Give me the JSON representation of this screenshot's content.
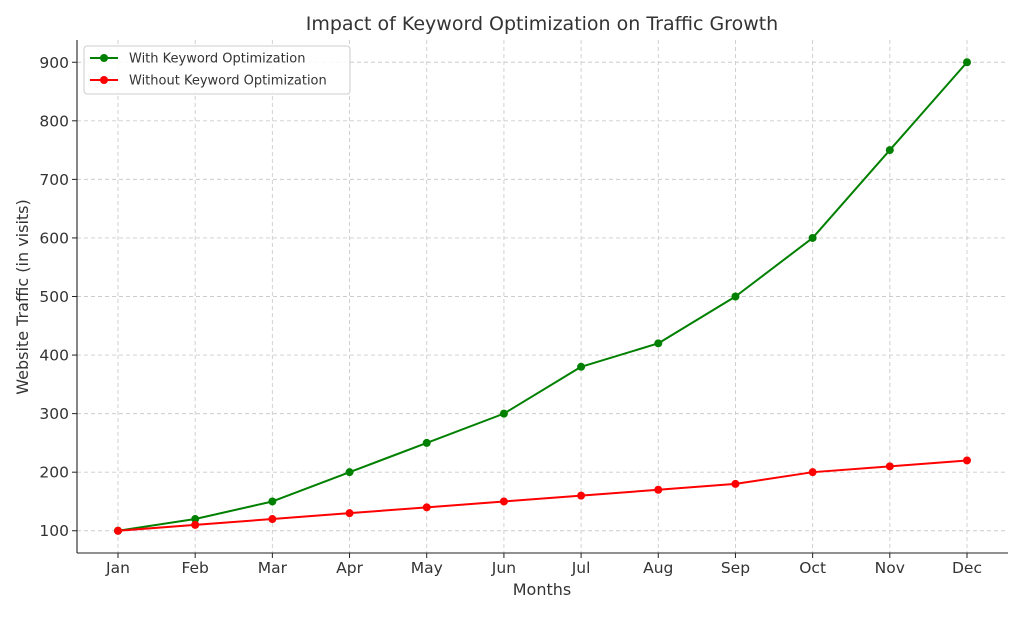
{
  "chart_data": {
    "type": "line",
    "title": "Impact of Keyword Optimization on Traffic Growth",
    "xlabel": "Months",
    "ylabel": "Website Traffic (in visits)",
    "categories": [
      "Jan",
      "Feb",
      "Mar",
      "Apr",
      "May",
      "Jun",
      "Jul",
      "Aug",
      "Sep",
      "Oct",
      "Nov",
      "Dec"
    ],
    "ylim": [
      62,
      938
    ],
    "yticks": [
      100,
      200,
      300,
      400,
      500,
      600,
      700,
      800,
      900
    ],
    "grid": true,
    "legend_position": "top-left",
    "series": [
      {
        "name": "With Keyword Optimization",
        "color": "#008000",
        "values": [
          100,
          120,
          150,
          200,
          250,
          300,
          380,
          420,
          500,
          600,
          750,
          900
        ]
      },
      {
        "name": "Without Keyword Optimization",
        "color": "#ff0000",
        "values": [
          100,
          110,
          120,
          130,
          140,
          150,
          160,
          170,
          180,
          200,
          210,
          220
        ]
      }
    ]
  }
}
